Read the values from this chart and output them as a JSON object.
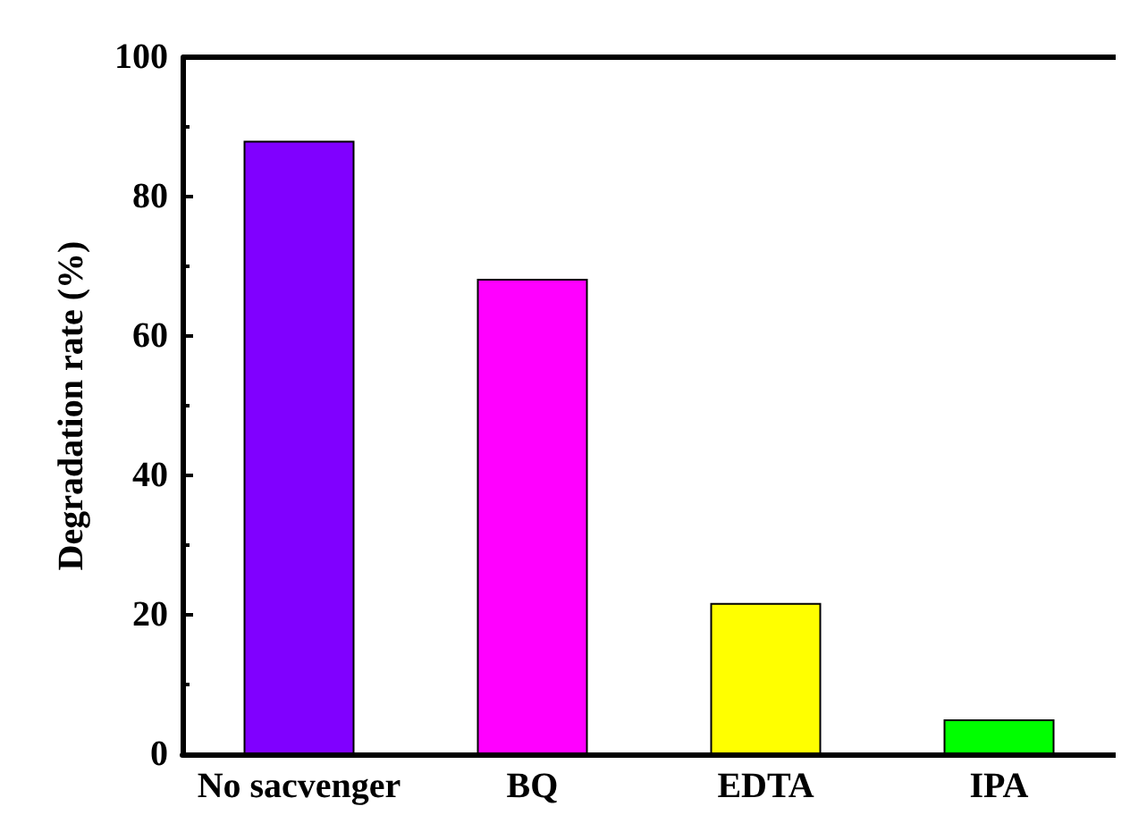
{
  "chart_data": {
    "type": "bar",
    "ylabel": "Degradation rate (%)",
    "categories": [
      "No sacvenger",
      "BQ",
      "EDTA",
      "IPA"
    ],
    "values": [
      88,
      68.2,
      21.7,
      5.0
    ],
    "colors": [
      "#8000ff",
      "#ff00ff",
      "#ffff00",
      "#00ff00"
    ],
    "ylim": [
      0,
      100
    ],
    "yticks": [
      0,
      20,
      40,
      60,
      80,
      100
    ],
    "grid": false
  }
}
